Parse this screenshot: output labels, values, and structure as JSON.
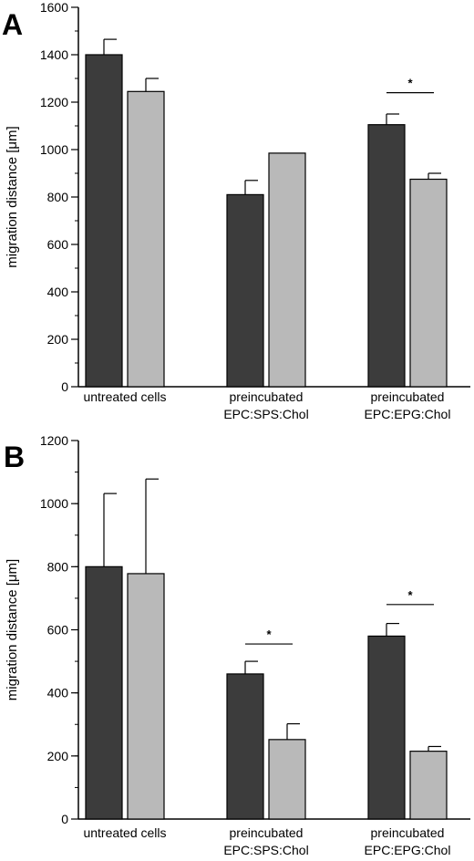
{
  "colors": {
    "dark": "#3c3c3c",
    "light": "#b9b9b9",
    "axis": "#000000"
  },
  "chart_data": [
    {
      "type": "bar",
      "panel_label": "A",
      "title": "",
      "xlabel": "",
      "ylabel": "migration distance [μm]",
      "ylim": [
        0,
        1600
      ],
      "yticks": [
        0,
        200,
        400,
        600,
        800,
        1000,
        1200,
        1400,
        1600
      ],
      "minor_step": 100,
      "grid": false,
      "categories": [
        [
          "untreated cells"
        ],
        [
          "preincubated",
          "EPC:SPS:Chol"
        ],
        [
          "preincubated",
          "EPC:EPG:Chol"
        ]
      ],
      "series": [
        {
          "color": "dark",
          "values": [
            1400,
            810,
            1105
          ],
          "errors": [
            65,
            60,
            45
          ]
        },
        {
          "color": "light",
          "values": [
            1245,
            985,
            875
          ],
          "errors": [
            55,
            0,
            25
          ]
        }
      ],
      "significance": [
        {
          "category": 2,
          "y": 1240,
          "label": "*"
        }
      ]
    },
    {
      "type": "bar",
      "panel_label": "B",
      "title": "",
      "xlabel": "",
      "ylabel": "migration distance [μm]",
      "ylim": [
        0,
        1200
      ],
      "yticks": [
        0,
        200,
        400,
        600,
        800,
        1000,
        1200
      ],
      "minor_step": 100,
      "grid": false,
      "categories": [
        [
          "untreated cells"
        ],
        [
          "preincubated",
          "EPC:SPS:Chol"
        ],
        [
          "preincubated",
          "EPC:EPG:Chol"
        ]
      ],
      "series": [
        {
          "color": "dark",
          "values": [
            800,
            460,
            580
          ],
          "errors": [
            232,
            40,
            40
          ]
        },
        {
          "color": "light",
          "values": [
            778,
            252,
            215
          ],
          "errors": [
            300,
            50,
            15
          ]
        }
      ],
      "significance": [
        {
          "category": 1,
          "y": 555,
          "label": "*"
        },
        {
          "category": 2,
          "y": 680,
          "label": "*"
        }
      ]
    }
  ]
}
